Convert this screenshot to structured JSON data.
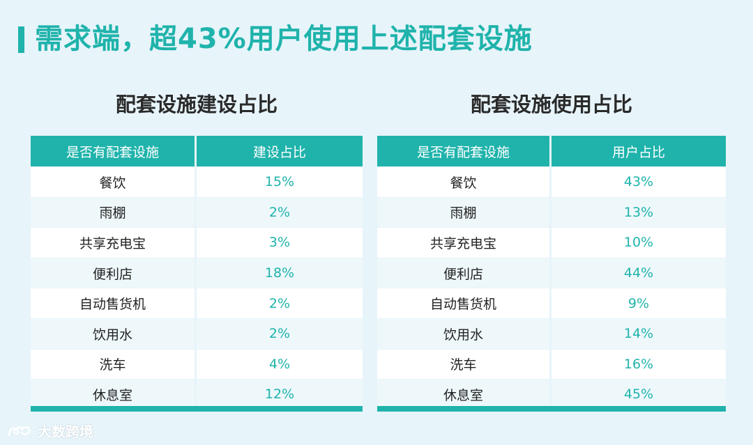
{
  "title": "需求端，超43%用户使用上述配套设施",
  "left": {
    "subtitle": "配套设施建设占比",
    "headers": [
      "是否有配套设施",
      "建设占比"
    ],
    "rows": [
      {
        "name": "餐饮",
        "value": "15%"
      },
      {
        "name": "雨棚",
        "value": "2%"
      },
      {
        "name": "共享充电宝",
        "value": "3%"
      },
      {
        "name": "便利店",
        "value": "18%"
      },
      {
        "name": "自动售货机",
        "value": "2%"
      },
      {
        "name": "饮用水",
        "value": "2%"
      },
      {
        "name": "洗车",
        "value": "4%"
      },
      {
        "name": "休息室",
        "value": "12%"
      }
    ]
  },
  "right": {
    "subtitle": "配套设施使用占比",
    "headers": [
      "是否有配套设施",
      "用户占比"
    ],
    "rows": [
      {
        "name": "餐饮",
        "value": "43%"
      },
      {
        "name": "雨棚",
        "value": "13%"
      },
      {
        "name": "共享充电宝",
        "value": "10%"
      },
      {
        "name": "便利店",
        "value": "44%"
      },
      {
        "name": "自动售货机",
        "value": "9%"
      },
      {
        "name": "饮用水",
        "value": "14%"
      },
      {
        "name": "洗车",
        "value": "16%"
      },
      {
        "name": "休息室",
        "value": "45%"
      }
    ]
  },
  "logo": {
    "text": "大数跨境",
    "icon": "logo-icon"
  },
  "colors": {
    "accent": "#1fb3ab",
    "background": "#e7f4fa"
  }
}
